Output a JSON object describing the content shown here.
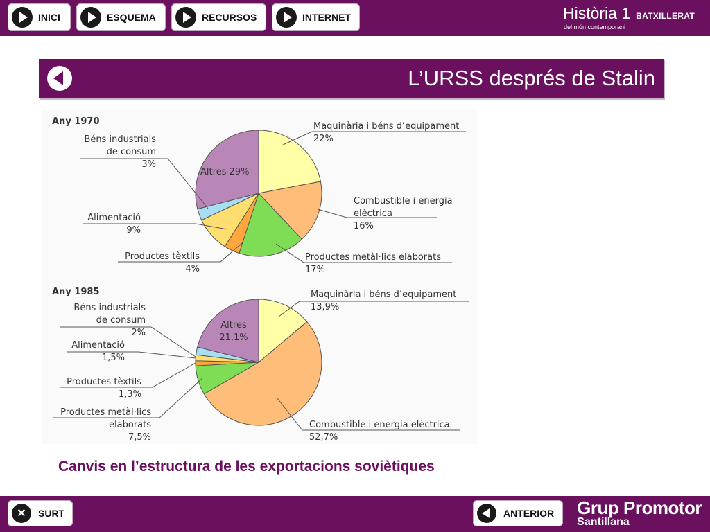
{
  "nav": {
    "items": [
      {
        "label": "INICI"
      },
      {
        "label": "ESQUEMA"
      },
      {
        "label": "RECURSOS"
      },
      {
        "label": "INTERNET"
      }
    ]
  },
  "brand": {
    "title": "Història 1",
    "tag": "BATXILLERAT",
    "subtitle": "del món contemporani"
  },
  "page": {
    "title": "L’URSS després de Stalin",
    "caption": "Canvis en l’estructura de les exportacions soviètiques"
  },
  "footer": {
    "exit_label": "SURT",
    "prev_label": "ANTERIOR",
    "logo_line1": "Grup Promotor",
    "logo_line2": "Santillana"
  },
  "colors": {
    "maquinaria": "#ffffa8",
    "combustible": "#ffbd7a",
    "metal": "#7edc55",
    "textils": "#ffa63c",
    "alimentacio": "#ffde70",
    "bens": "#a8ddf3",
    "altres": "#b887b8"
  },
  "chart_data": [
    {
      "type": "pie",
      "title": "Any 1970",
      "series": [
        {
          "name": "Maquinària i béns d’equipament",
          "value": 22,
          "label": "22%",
          "color": "maquinaria"
        },
        {
          "name": "Combustible i energia elèctrica",
          "value": 16,
          "label": "16%",
          "color": "combustible"
        },
        {
          "name": "Productes metàl·lics elaborats",
          "value": 17,
          "label": "17%",
          "color": "metal"
        },
        {
          "name": "Productes tèxtils",
          "value": 4,
          "label": "4%",
          "color": "textils"
        },
        {
          "name": "Alimentació",
          "value": 9,
          "label": "9%",
          "color": "alimentacio"
        },
        {
          "name": "Béns industrials de consum",
          "value": 3,
          "label": "3%",
          "color": "bens"
        },
        {
          "name": "Altres",
          "value": 29,
          "label": "Altres 29%",
          "color": "altres"
        }
      ]
    },
    {
      "type": "pie",
      "title": "Any 1985",
      "series": [
        {
          "name": "Maquinària i béns d’equipament",
          "value": 13.9,
          "label": "13,9%",
          "color": "maquinaria"
        },
        {
          "name": "Combustible i energia elèctrica",
          "value": 52.7,
          "label": "52,7%",
          "color": "combustible"
        },
        {
          "name": "Productes metàl·lics elaborats",
          "value": 7.5,
          "label": "7,5%",
          "color": "metal"
        },
        {
          "name": "Productes tèxtils",
          "value": 1.3,
          "label": "1,3%",
          "color": "textils"
        },
        {
          "name": "Alimentació",
          "value": 1.5,
          "label": "1,5%",
          "color": "alimentacio"
        },
        {
          "name": "Béns industrials de consum",
          "value": 2,
          "label": "2%",
          "color": "bens"
        },
        {
          "name": "Altres",
          "value": 21.1,
          "label": "Altres 21,1%",
          "color": "altres"
        }
      ]
    }
  ]
}
